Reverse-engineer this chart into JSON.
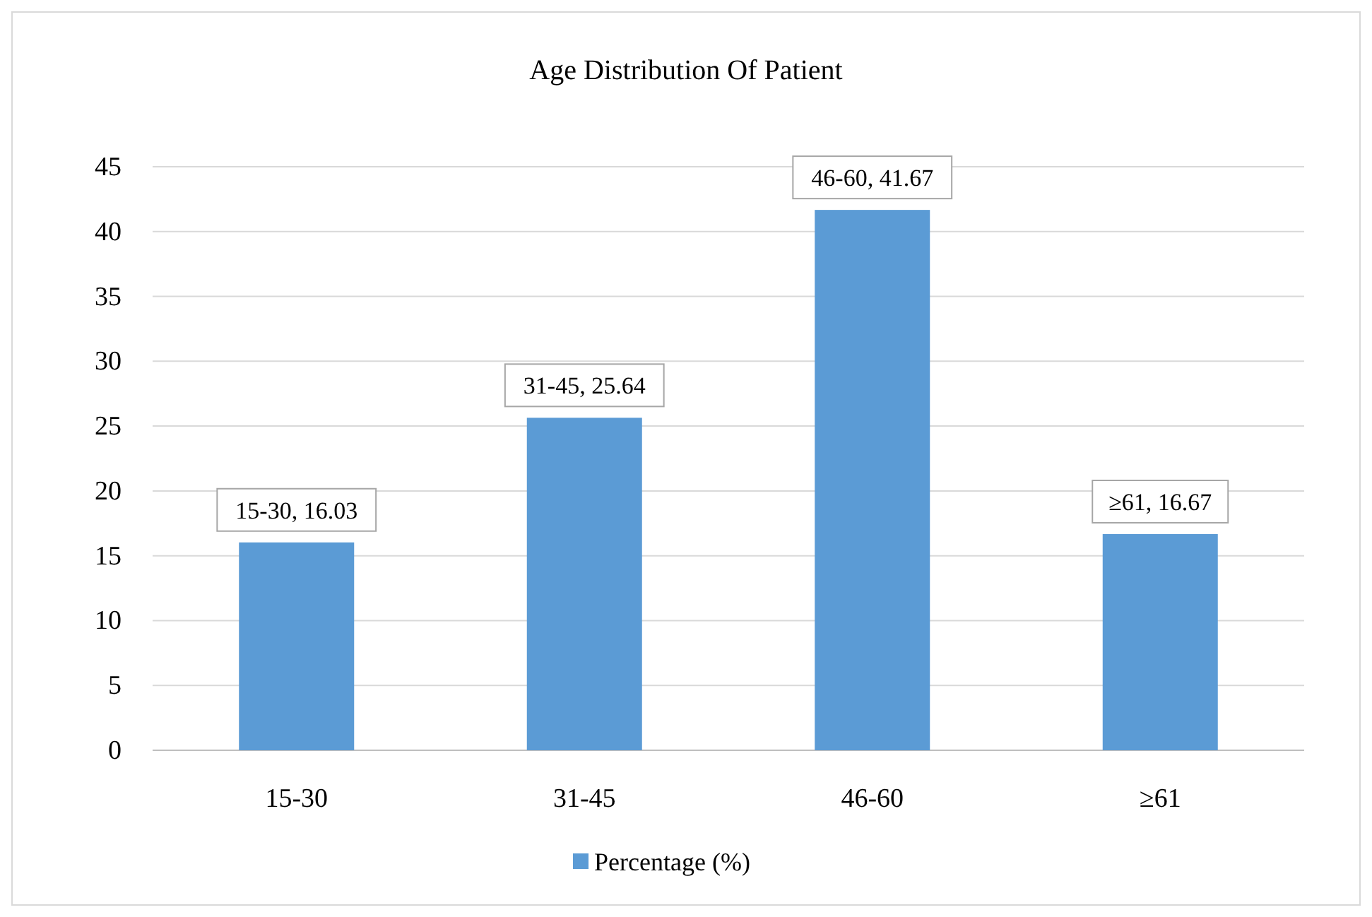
{
  "chart_data": {
    "type": "bar",
    "title": "Age Distribution Of Patient",
    "categories": [
      "15-30",
      "31-45",
      "46-60",
      "≥61"
    ],
    "series": [
      {
        "name": "Percentage (%)",
        "color": "#5b9bd5",
        "values": [
          16.03,
          25.64,
          41.67,
          16.67
        ],
        "value_labels": [
          "15-30, 16.03",
          "31-45, 25.64",
          "46-60, 41.67",
          "≥61, 16.67"
        ]
      }
    ],
    "ylim": [
      0,
      45
    ],
    "yticks": [
      0,
      5,
      10,
      15,
      20,
      25,
      30,
      35,
      40,
      45
    ],
    "grid": "y",
    "legend": "bottom"
  }
}
